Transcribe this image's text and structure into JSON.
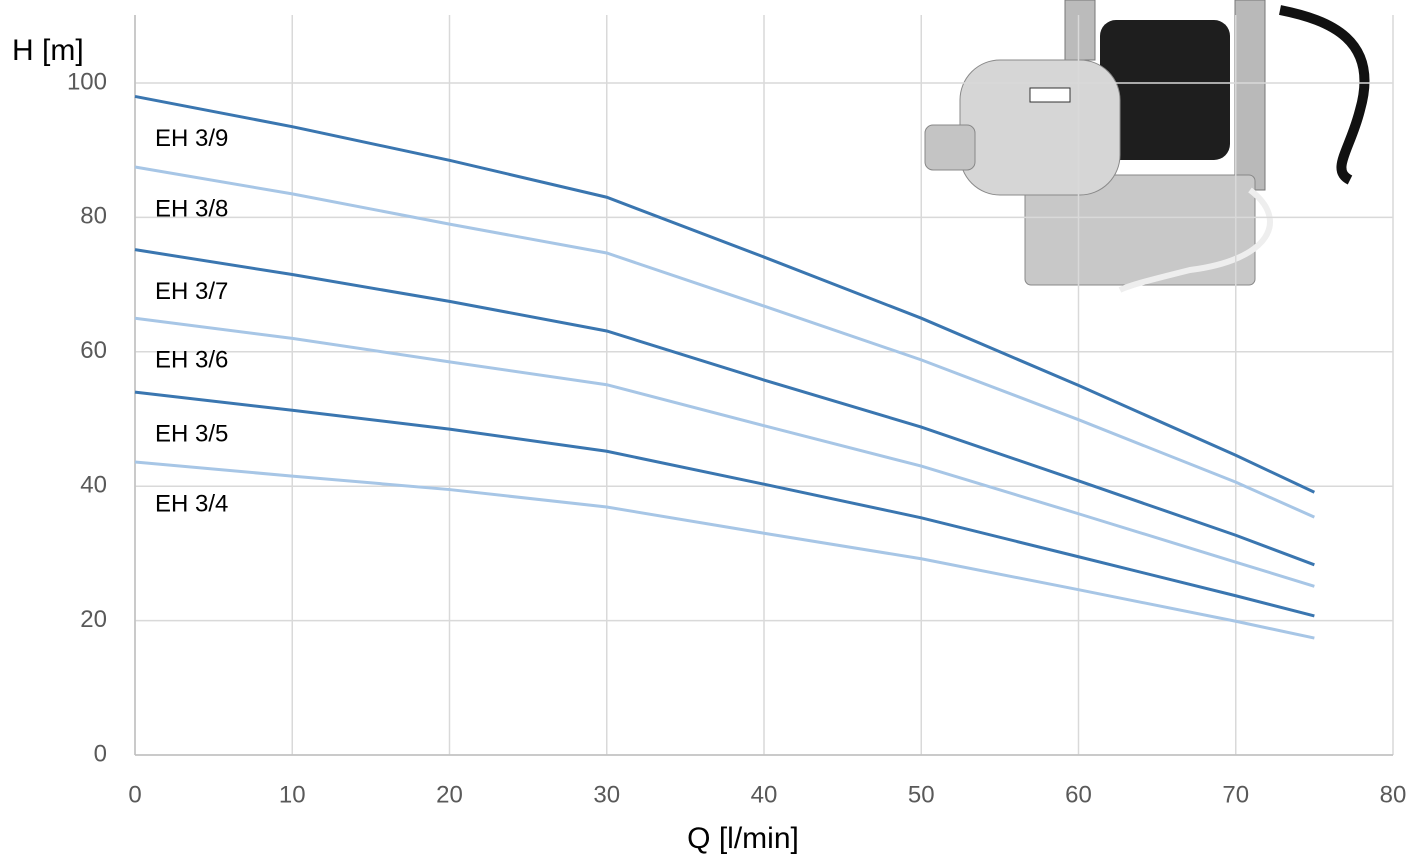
{
  "chart_data": {
    "type": "line",
    "x_label": "Q [l/min]",
    "y_label": "H [m]",
    "x": [
      0,
      10,
      20,
      30,
      40,
      50,
      60,
      70,
      75
    ],
    "series": [
      {
        "name": "EH 3/9",
        "color": "#3a76b0",
        "values": [
          98,
          93.5,
          88.5,
          83,
          74.1,
          65,
          55,
          44.6,
          39.1
        ]
      },
      {
        "name": "EH 3/8",
        "color": "#a7c6e6",
        "values": [
          87.5,
          83.5,
          79,
          74.7,
          66.8,
          58.8,
          49.9,
          40.6,
          35.4
        ]
      },
      {
        "name": "EH 3/7",
        "color": "#3a76b0",
        "values": [
          75.2,
          71.5,
          67.5,
          63.1,
          55.8,
          48.8,
          40.8,
          32.7,
          28.3
        ]
      },
      {
        "name": "EH 3/6",
        "color": "#a7c6e6",
        "values": [
          65,
          62,
          58.5,
          55.1,
          49,
          43,
          35.9,
          28.7,
          25.1
        ]
      },
      {
        "name": "EH 3/5",
        "color": "#3a76b0",
        "values": [
          54,
          51.3,
          48.5,
          45.2,
          40.3,
          35.3,
          29.5,
          23.7,
          20.7
        ]
      },
      {
        "name": "EH 3/4",
        "color": "#a7c6e6",
        "values": [
          43.6,
          41.5,
          39.5,
          36.9,
          33,
          29.2,
          24.6,
          19.9,
          17.4
        ]
      }
    ],
    "xlim": [
      0,
      80
    ],
    "xticks": [
      0,
      10,
      20,
      30,
      40,
      50,
      60,
      70,
      80
    ],
    "ylim": [
      0,
      100
    ],
    "yticks": [
      0,
      20,
      40,
      60,
      80,
      100
    ],
    "grid": true
  }
}
